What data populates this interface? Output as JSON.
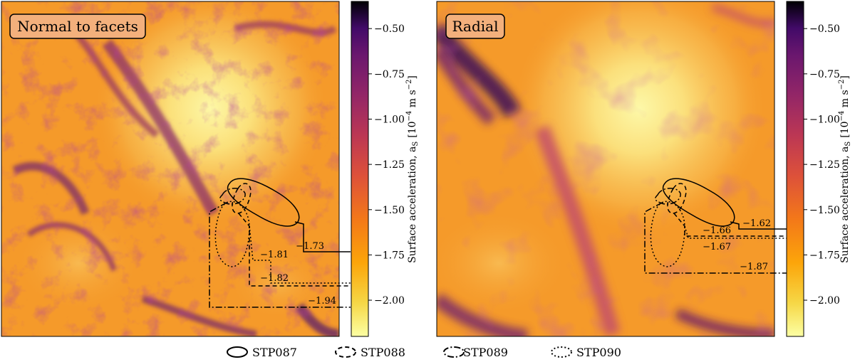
{
  "chart_data": [
    {
      "type": "heatmap",
      "panel_label": "Normal to facets",
      "colorbar": {
        "label": "Surface acceleration, a",
        "label_subscript": "S",
        "label_units": "[10",
        "label_exponent": "−4",
        "label_units_rest": " m s",
        "label_exponent2": "−2",
        "label_close": "]",
        "ticks": [
          "−0.50",
          "−0.75",
          "−1.00",
          "−1.25",
          "−1.50",
          "−1.75",
          "−2.00"
        ],
        "tick_values": [
          -0.5,
          -0.75,
          -1.0,
          -1.25,
          -1.5,
          -1.75,
          -2.0
        ],
        "range": [
          -2.2,
          -0.35
        ],
        "colormap": "inferno"
      },
      "annotations": [
        {
          "series": "STP087",
          "value": "−1.73"
        },
        {
          "series": "STP090",
          "value": "−1.81"
        },
        {
          "series": "STP088",
          "value": "−1.82"
        },
        {
          "series": "STP089",
          "value": "−1.94"
        }
      ]
    },
    {
      "type": "heatmap",
      "panel_label": "Radial",
      "colorbar": {
        "label": "Surface acceleration, a",
        "label_subscript": "S",
        "label_units": "[10",
        "label_exponent": "−4",
        "label_units_rest": " m s",
        "label_exponent2": "−2",
        "label_close": "]",
        "ticks": [
          "−0.50",
          "−0.75",
          "−1.00",
          "−1.25",
          "−1.50",
          "−1.75",
          "−2.00"
        ],
        "tick_values": [
          -0.5,
          -0.75,
          -1.0,
          -1.25,
          -1.5,
          -1.75,
          -2.0
        ],
        "range": [
          -2.2,
          -0.35
        ],
        "colormap": "inferno"
      },
      "annotations": [
        {
          "series": "STP087",
          "value": "−1.62"
        },
        {
          "series": "STP088",
          "value": "−1.66"
        },
        {
          "series": "STP090",
          "value": "−1.67"
        },
        {
          "series": "STP089",
          "value": "−1.87"
        }
      ]
    }
  ],
  "legend": {
    "placement": "bottom",
    "entries": [
      {
        "label": "STP087",
        "style": "solid"
      },
      {
        "label": "STP088",
        "style": "dashed"
      },
      {
        "label": "STP089",
        "style": "dashdot"
      },
      {
        "label": "STP090",
        "style": "dotted"
      }
    ]
  },
  "colors": {
    "bright": "#fcfca4",
    "mid": "#f7941d",
    "dark": "#000004",
    "panel_label_bg": "#f3b07c"
  }
}
